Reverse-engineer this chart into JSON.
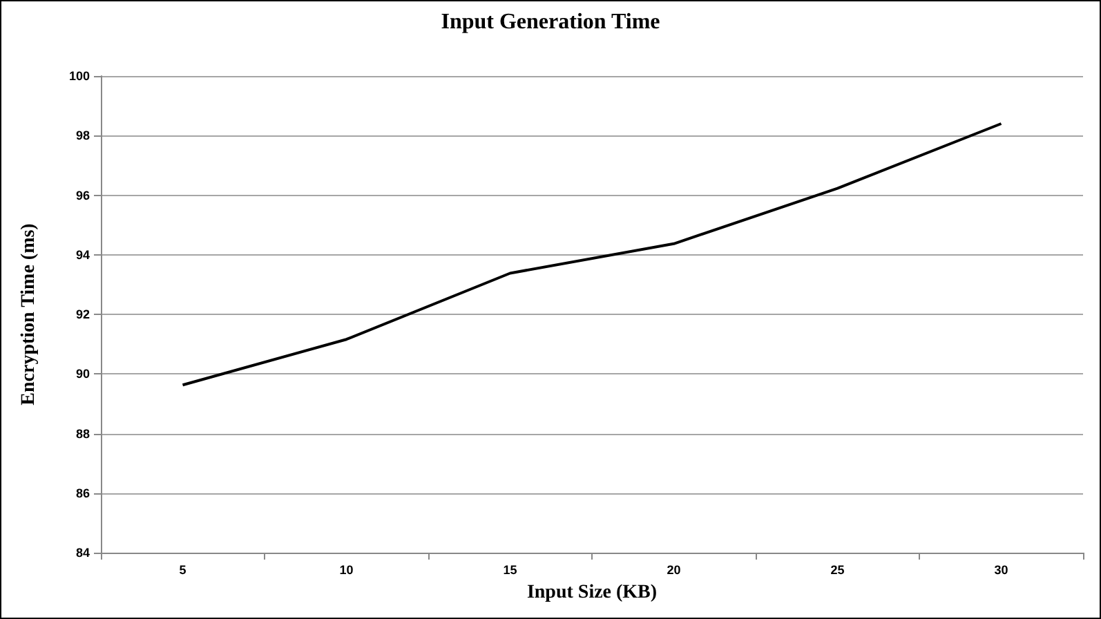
{
  "chart_data": {
    "type": "line",
    "title": "Input Generation Time",
    "xlabel": "Input Size (KB)",
    "ylabel": "Encryption Time (ms)",
    "categories": [
      "5",
      "10",
      "15",
      "20",
      "25",
      "30"
    ],
    "series": [
      {
        "color": "#000000",
        "values": [
          89.63,
          91.16,
          93.38,
          94.37,
          96.23,
          98.4
        ]
      }
    ],
    "ylim": [
      84,
      100
    ],
    "yticks": [
      84,
      86,
      88,
      90,
      92,
      94,
      96,
      98,
      100
    ],
    "grid": "y",
    "marker": "none",
    "line_style": "solid"
  }
}
